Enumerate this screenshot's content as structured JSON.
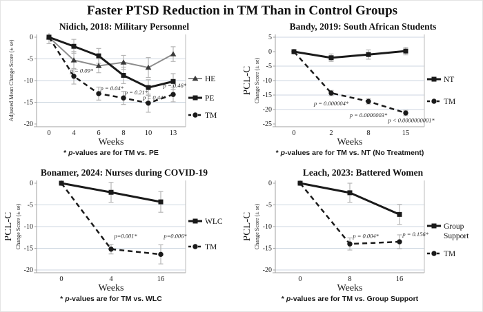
{
  "page_title": "Faster PTSD Reduction in TM Than in Control Groups",
  "colors": {
    "text": "#1a1a1a",
    "gridline": "#ccd6e0",
    "axis": "#a0a0a0",
    "axis_right": "#bbbbbb",
    "error_bar": "#b5b5b5",
    "he_gray": "#8c8c8c",
    "black_series": "#1a1a1a"
  },
  "chart_data": [
    {
      "type": "line",
      "title": "Nidich, 2018: Military Personnel",
      "ylabel_big": "",
      "ylabel": "Adjusted Mean Change Score (± se)",
      "xlabel": "Weeks",
      "footnote": {
        "prefix": "* ",
        "italic": "p",
        "rest": "-values are for TM vs. PE"
      },
      "ylim": [
        0,
        -20
      ],
      "yticks": [
        0,
        -5,
        -10,
        -15,
        -20
      ],
      "gridlines": [
        -5,
        -10,
        -15
      ],
      "categories": [
        "0",
        "4",
        "6",
        "8",
        "10",
        "13"
      ],
      "legend_position": "right",
      "series": [
        {
          "name": "HE",
          "marker": "triangle",
          "color": "#8c8c8c",
          "marker_color": "#3a3a3a",
          "dash": "",
          "width": 2,
          "values": [
            0,
            -5.3,
            -6.6,
            -5.8,
            -7.0,
            -3.9
          ],
          "se": [
            1.5,
            2.0,
            1.6,
            1.6,
            2.3,
            1.7
          ]
        },
        {
          "name": "PE",
          "marker": "square",
          "color": "#1a1a1a",
          "dash": "",
          "width": 3,
          "values": [
            0,
            -2.1,
            -4.3,
            -8.8,
            -11.6,
            -10.2
          ],
          "se": [
            0.5,
            1.6,
            1.7,
            1.9,
            1.8,
            1.8
          ]
        },
        {
          "name": "TM",
          "marker": "circle",
          "color": "#1a1a1a",
          "dash": "7,5",
          "width": 2.5,
          "values": [
            0,
            -9.0,
            -13.0,
            -14.0,
            -15.2,
            -13.2
          ],
          "se": [
            0.5,
            1.8,
            1.5,
            1.5,
            2.1,
            1.7
          ]
        }
      ],
      "annotations": [
        {
          "x": 0.85,
          "y": -8.2,
          "text": "p = 0.09*",
          "anchor": "start"
        },
        {
          "x": 2.07,
          "y": -12.2,
          "text": "p = 0.04*",
          "anchor": "start"
        },
        {
          "x": 3.05,
          "y": -13.2,
          "text": "p = 0.21*",
          "anchor": "start"
        },
        {
          "x": 3.78,
          "y": -14.4,
          "text": "p = 0.44*",
          "anchor": "start"
        },
        {
          "x": 4.6,
          "y": -11.6,
          "text": "p = 0.46*",
          "anchor": "start"
        }
      ]
    },
    {
      "type": "line",
      "title": "Bandy, 2019: South African Students",
      "ylabel_big": "PCL-C",
      "ylabel": "Change Score (± se)",
      "xlabel": "Weeks",
      "footnote": {
        "prefix": "* ",
        "italic": "p",
        "rest": "-values are for TM vs. NT (No Treatment)"
      },
      "ylim": [
        5,
        -25
      ],
      "yticks": [
        5,
        0,
        -5,
        -10,
        -15,
        -20,
        -25
      ],
      "gridlines": [
        5,
        -5,
        -10,
        -15,
        -20
      ],
      "categories": [
        "0",
        "2",
        "8",
        "15"
      ],
      "legend_position": "right",
      "series": [
        {
          "name": "NT",
          "marker": "square",
          "color": "#1a1a1a",
          "dash": "",
          "width": 3,
          "values": [
            0,
            -2.1,
            -1.0,
            0.2
          ],
          "se": [
            0.5,
            1.3,
            1.6,
            1.3
          ]
        },
        {
          "name": "TM",
          "marker": "circle",
          "color": "#1a1a1a",
          "dash": "7,5",
          "width": 2.5,
          "values": [
            0,
            -14.3,
            -17.2,
            -21.2
          ],
          "se": [
            0.5,
            0.9,
            0.9,
            0.9
          ]
        }
      ],
      "annotations": [
        {
          "x": 1.0,
          "y": -18.6,
          "text": "p = 0.000004*",
          "anchor": "middle"
        },
        {
          "x": 2.0,
          "y": -22.6,
          "text": "p = 0.0000003*",
          "anchor": "middle"
        },
        {
          "x": 3.15,
          "y": -24.4,
          "text": "p < 0.0000000001*",
          "anchor": "middle"
        }
      ]
    },
    {
      "type": "line",
      "title": "Bonamer, 2024: Nurses during COVID-19",
      "ylabel_big": "PCL-C",
      "ylabel": "Change Score (± se)",
      "xlabel": "Weeks",
      "footnote": {
        "prefix": "* ",
        "italic": "p",
        "rest": "-values are for TM vs. WLC"
      },
      "ylim": [
        0,
        -20
      ],
      "yticks": [
        0,
        -5,
        -10,
        -15,
        -20
      ],
      "gridlines": [
        -5,
        -10,
        -15,
        -20
      ],
      "categories": [
        "0",
        "4",
        "16"
      ],
      "legend_position": "right",
      "series": [
        {
          "name": "WLC",
          "marker": "square",
          "color": "#1a1a1a",
          "dash": "",
          "width": 3,
          "values": [
            0,
            -2.1,
            -4.3
          ],
          "se": [
            0.4,
            2.3,
            2.4
          ]
        },
        {
          "name": "TM",
          "marker": "circle",
          "color": "#1a1a1a",
          "dash": "7,5",
          "width": 2.5,
          "values": [
            0,
            -15.2,
            -16.4
          ],
          "se": [
            0.4,
            1.1,
            2.2
          ]
        }
      ],
      "annotations": [
        {
          "x": 1.06,
          "y": -12.6,
          "text": "p=0.001*",
          "anchor": "start"
        },
        {
          "x": 2.06,
          "y": -12.6,
          "text": "p=0.006*",
          "anchor": "start"
        }
      ]
    },
    {
      "type": "line",
      "title": "Leach, 2023: Battered Women",
      "ylabel_big": "PCL-C",
      "ylabel": "Change Score (± se)",
      "xlabel": "Weeks",
      "footnote": {
        "prefix": "* ",
        "italic": "p",
        "rest": "-values are for TM vs. Group Support"
      },
      "ylim": [
        0,
        -20
      ],
      "yticks": [
        0,
        -5,
        -10,
        -15,
        -20
      ],
      "gridlines": [
        -5,
        -10,
        -15,
        -20
      ],
      "categories": [
        "0",
        "8",
        "16"
      ],
      "legend_position": "right",
      "series": [
        {
          "name": "Group Support",
          "legend_lines": [
            "Group",
            "Support"
          ],
          "marker": "square",
          "color": "#1a1a1a",
          "dash": "",
          "width": 3,
          "values": [
            0,
            -2.2,
            -7.2
          ],
          "se": [
            0.4,
            2.2,
            2.3
          ]
        },
        {
          "name": "TM",
          "marker": "circle",
          "color": "#1a1a1a",
          "dash": "7,5",
          "width": 2.5,
          "values": [
            0,
            -14.0,
            -13.5
          ],
          "se": [
            0.4,
            1.4,
            1.6
          ]
        }
      ],
      "annotations": [
        {
          "x": 1.06,
          "y": -12.6,
          "text": "p = 0.004*",
          "anchor": "start"
        },
        {
          "x": 2.06,
          "y": -12.2,
          "text": "p = 0.156*",
          "anchor": "start"
        }
      ]
    }
  ]
}
